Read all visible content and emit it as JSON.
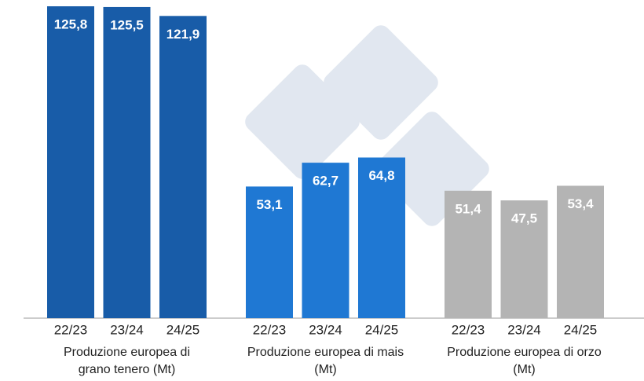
{
  "chart_data": {
    "type": "bar",
    "groups": [
      {
        "name": "Produzione europea di grano tenero (Mt)",
        "color": "#185ca8",
        "categories": [
          "22/23",
          "23/24",
          "24/25"
        ],
        "values": [
          125.8,
          125.5,
          121.9
        ],
        "value_labels": [
          "125,8",
          "125,5",
          "121,9"
        ]
      },
      {
        "name": "Produzione europea di mais (Mt)",
        "color": "#1f78d3",
        "categories": [
          "22/23",
          "23/24",
          "24/25"
        ],
        "values": [
          53.1,
          62.7,
          64.8
        ],
        "value_labels": [
          "53,1",
          "62,7",
          "64,8"
        ]
      },
      {
        "name": "Produzione europea di orzo (Mt)",
        "color": "#b4b4b4",
        "categories": [
          "22/23",
          "23/24",
          "24/25"
        ],
        "values": [
          51.4,
          47.5,
          53.4
        ],
        "value_labels": [
          "51,4",
          "47,5",
          "53,4"
        ]
      }
    ]
  }
}
